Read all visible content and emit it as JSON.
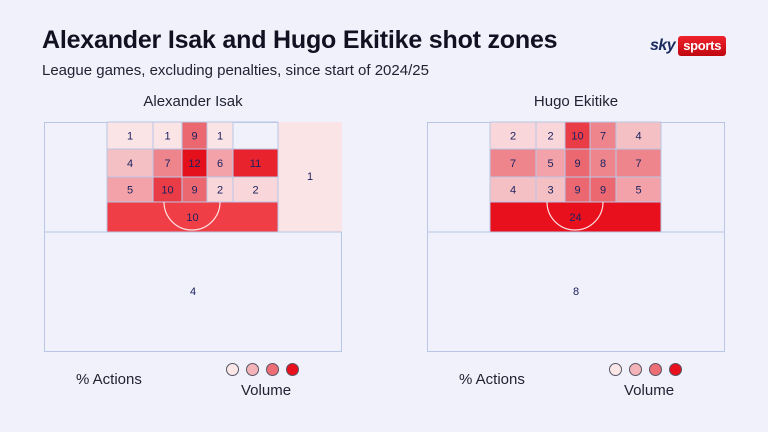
{
  "title": "Alexander Isak and Hugo Ekitike shot zones",
  "subtitle": "League games, excluding penalties, since start of 2024/25",
  "logo": {
    "sky": "sky",
    "sports": "sports"
  },
  "legend": {
    "actions_label": "% Actions",
    "volume_label": "Volume",
    "colors": [
      "#fbe6e8",
      "#f4b3b8",
      "#ee6e76",
      "#e8101c"
    ]
  },
  "colors": {
    "background": "#f0f1fb",
    "pitch_line": "#b9c6e6",
    "value_text": "#1c2260",
    "accent": "#e8101c"
  },
  "chart_data": [
    {
      "type": "heatmap",
      "player": "Alexander Isak",
      "unit": "% of actions",
      "zones": [
        {
          "zone": "six-yard-box-1",
          "value": 1
        },
        {
          "zone": "six-yard-box-2",
          "value": 1
        },
        {
          "zone": "six-yard-box-3",
          "value": 9
        },
        {
          "zone": "six-yard-box-4",
          "value": 1
        },
        {
          "zone": "six-yard-box-5",
          "value": null
        },
        {
          "zone": "penalty-area-row2-1",
          "value": 4
        },
        {
          "zone": "penalty-area-row2-2",
          "value": 7
        },
        {
          "zone": "penalty-area-row2-3",
          "value": 12
        },
        {
          "zone": "penalty-area-row2-4",
          "value": 6
        },
        {
          "zone": "penalty-area-row2-5",
          "value": 11
        },
        {
          "zone": "penalty-area-row3-1",
          "value": 5
        },
        {
          "zone": "penalty-area-row3-2",
          "value": 10
        },
        {
          "zone": "penalty-area-row3-3",
          "value": 9
        },
        {
          "zone": "penalty-area-row3-4",
          "value": 2
        },
        {
          "zone": "penalty-area-row3-5",
          "value": 2
        },
        {
          "zone": "edge-of-box",
          "value": 10
        },
        {
          "zone": "right-wide",
          "value": 1
        },
        {
          "zone": "left-wide",
          "value": null
        },
        {
          "zone": "outside-box",
          "value": 4
        }
      ]
    },
    {
      "type": "heatmap",
      "player": "Hugo Ekitike",
      "unit": "% of actions",
      "zones": [
        {
          "zone": "six-yard-box-1",
          "value": 2
        },
        {
          "zone": "six-yard-box-2",
          "value": 2
        },
        {
          "zone": "six-yard-box-3",
          "value": 10
        },
        {
          "zone": "six-yard-box-4",
          "value": 7
        },
        {
          "zone": "six-yard-box-5",
          "value": 4
        },
        {
          "zone": "penalty-area-row2-1",
          "value": 7
        },
        {
          "zone": "penalty-area-row2-2",
          "value": 5
        },
        {
          "zone": "penalty-area-row2-3",
          "value": 9
        },
        {
          "zone": "penalty-area-row2-4",
          "value": 8
        },
        {
          "zone": "penalty-area-row2-5",
          "value": 7
        },
        {
          "zone": "penalty-area-row3-1",
          "value": 4
        },
        {
          "zone": "penalty-area-row3-2",
          "value": 3
        },
        {
          "zone": "penalty-area-row3-3",
          "value": 9
        },
        {
          "zone": "penalty-area-row3-4",
          "value": 9
        },
        {
          "zone": "penalty-area-row3-5",
          "value": 5
        },
        {
          "zone": "edge-of-box",
          "value": 24
        },
        {
          "zone": "right-wide",
          "value": null
        },
        {
          "zone": "left-wide",
          "value": null
        },
        {
          "zone": "outside-box",
          "value": 8
        }
      ]
    }
  ]
}
